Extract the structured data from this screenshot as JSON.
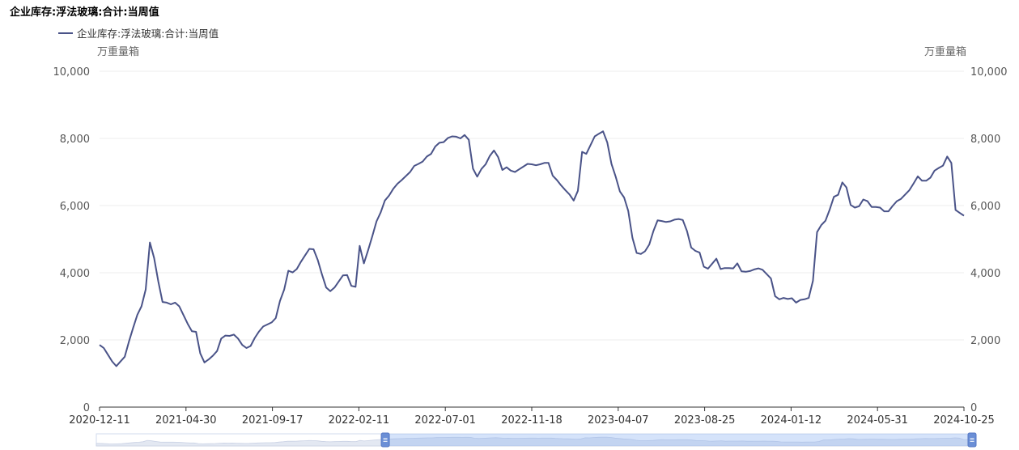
{
  "chart_data": {
    "type": "line",
    "title": "企业库存:浮法玻璃:合计:当周值",
    "unit_left": "万重量箱",
    "unit_right": "万重量箱",
    "ylim": [
      0,
      10000
    ],
    "yticks": [
      "10,000",
      "8,000",
      "6,000",
      "4,000",
      "2,000",
      "0"
    ],
    "ytick_values": [
      10000,
      8000,
      6000,
      4000,
      2000,
      0
    ],
    "x_tick_labels": [
      "2020-12-11",
      "2021-04-30",
      "2021-09-17",
      "2022-02-11",
      "2022-07-01",
      "2022-11-18",
      "2023-04-07",
      "2023-08-25",
      "2024-01-12",
      "2024-05-31",
      "2024-10-25"
    ],
    "legend_placement": "top-left",
    "grid": true,
    "series": [
      {
        "name": "企业库存:浮法玻璃:合计:当周值",
        "color": "#4a5388",
        "values": [
          1850,
          1760,
          1560,
          1360,
          1220,
          1360,
          1500,
          1950,
          2360,
          2750,
          3000,
          3500,
          4900,
          4440,
          3740,
          3130,
          3110,
          3060,
          3110,
          3000,
          2740,
          2480,
          2260,
          2240,
          1600,
          1330,
          1420,
          1530,
          1670,
          2040,
          2130,
          2120,
          2160,
          2040,
          1850,
          1760,
          1820,
          2060,
          2250,
          2400,
          2460,
          2520,
          2650,
          3160,
          3500,
          4060,
          4010,
          4110,
          4330,
          4520,
          4710,
          4700,
          4380,
          3950,
          3560,
          3450,
          3560,
          3740,
          3920,
          3930,
          3610,
          3580,
          4800,
          4280,
          4670,
          5090,
          5530,
          5800,
          6150,
          6300,
          6500,
          6650,
          6760,
          6880,
          7000,
          7180,
          7240,
          7310,
          7460,
          7540,
          7760,
          7870,
          7890,
          8010,
          8060,
          8050,
          8000,
          8100,
          7960,
          7100,
          6860,
          7090,
          7230,
          7480,
          7640,
          7440,
          7060,
          7140,
          7040,
          7000,
          7080,
          7160,
          7240,
          7230,
          7200,
          7230,
          7270,
          7270,
          6890,
          6760,
          6600,
          6460,
          6330,
          6150,
          6440,
          7600,
          7540,
          7800,
          8060,
          8140,
          8210,
          7880,
          7240,
          6860,
          6420,
          6240,
          5840,
          5040,
          4590,
          4560,
          4640,
          4840,
          5240,
          5560,
          5540,
          5510,
          5530,
          5580,
          5600,
          5570,
          5240,
          4750,
          4650,
          4600,
          4180,
          4120,
          4270,
          4420,
          4110,
          4140,
          4140,
          4130,
          4280,
          4040,
          4030,
          4050,
          4100,
          4130,
          4090,
          3960,
          3830,
          3300,
          3210,
          3250,
          3220,
          3240,
          3110,
          3190,
          3210,
          3250,
          3760,
          5210,
          5420,
          5550,
          5880,
          6260,
          6320,
          6690,
          6540,
          6020,
          5940,
          5980,
          6180,
          6130,
          5960,
          5960,
          5940,
          5830,
          5830,
          5990,
          6130,
          6200,
          6330,
          6460,
          6660,
          6870,
          6740,
          6740,
          6830,
          7040,
          7120,
          7190,
          7460,
          7270,
          5870,
          5780,
          5700
        ]
      }
    ]
  },
  "slider": {
    "start_fraction": 0.33,
    "end_fraction": 1.0
  }
}
